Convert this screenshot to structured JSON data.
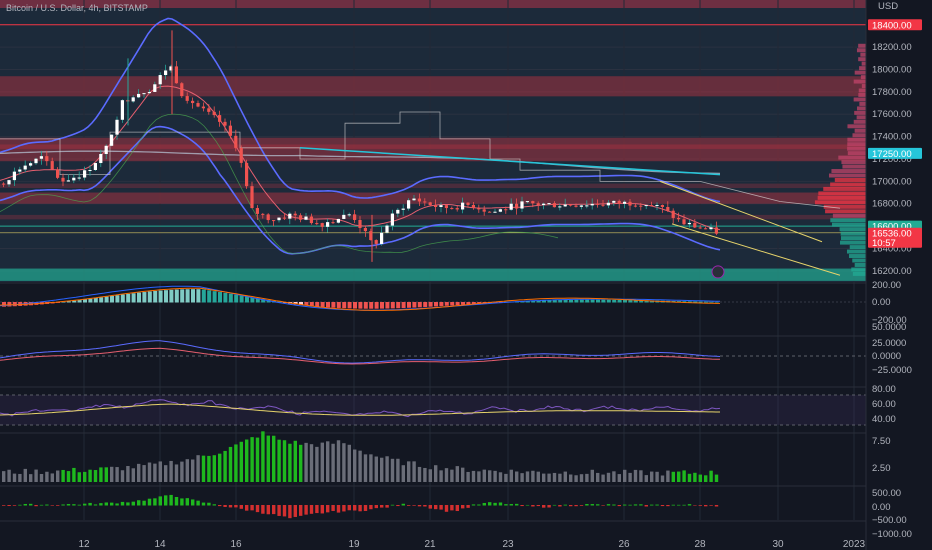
{
  "header": {
    "title": "Bitcoin / U.S. Dollar, 4h, BITSTAMP"
  },
  "price_axis": {
    "unit": "USD",
    "ticks": [
      "18200.00",
      "18000.00",
      "17800.00",
      "17600.00",
      "17400.00",
      "17200.00",
      "17000.00",
      "16800.00",
      "16400.00",
      "16200.00"
    ]
  },
  "price_tags": [
    {
      "name": "tag-top-level",
      "value": "18400.00",
      "color": "#f23645"
    },
    {
      "name": "tag-resistance",
      "value": "17250.00",
      "color": "#26c6da"
    },
    {
      "name": "tag-support",
      "value": "16600.00",
      "color": "#22ab94"
    },
    {
      "name": "tag-last-price",
      "value": "16536.00",
      "sub": "10:57",
      "color": "#f23645"
    }
  ],
  "macd_axis": {
    "ticks": [
      "200.00",
      "0.00",
      "−200.00"
    ]
  },
  "osc_axis": {
    "ticks": [
      "50.0000",
      "25.0000",
      "0.0000",
      "−25.0000"
    ]
  },
  "rsi_axis": {
    "ticks": [
      "80.00",
      "60.00",
      "40.00"
    ]
  },
  "vol_axis": {
    "ticks": [
      "7.50",
      "2.50"
    ]
  },
  "hist_axis": {
    "ticks": [
      "500.00",
      "0.00",
      "−500.00",
      "−1000.00"
    ]
  },
  "time_axis": {
    "ticks": [
      "12",
      "14",
      "16",
      "19",
      "21",
      "23",
      "26",
      "28",
      "30",
      "2023"
    ]
  },
  "chart_data": {
    "type": "candlestick",
    "symbol": "Bitcoin / U.S. Dollar",
    "interval": "4h",
    "exchange": "BITSTAMP",
    "price_range": [
      16100,
      18550
    ],
    "x_ticks": [
      "12",
      "14",
      "16",
      "19",
      "21",
      "23",
      "26",
      "28",
      "30",
      "2023"
    ],
    "key_levels": [
      18400,
      17250,
      16600,
      16536
    ],
    "zones": [
      {
        "from": 17760,
        "to": 17940,
        "color": "#f23645"
      },
      {
        "from": 17180,
        "to": 17390,
        "color": "#f23645"
      },
      {
        "from": 16800,
        "to": 16900,
        "color": "#f23645"
      },
      {
        "from": 16110,
        "to": 16220,
        "color": "#22ab94"
      }
    ],
    "last_price": 16536,
    "countdown": "10:57"
  }
}
